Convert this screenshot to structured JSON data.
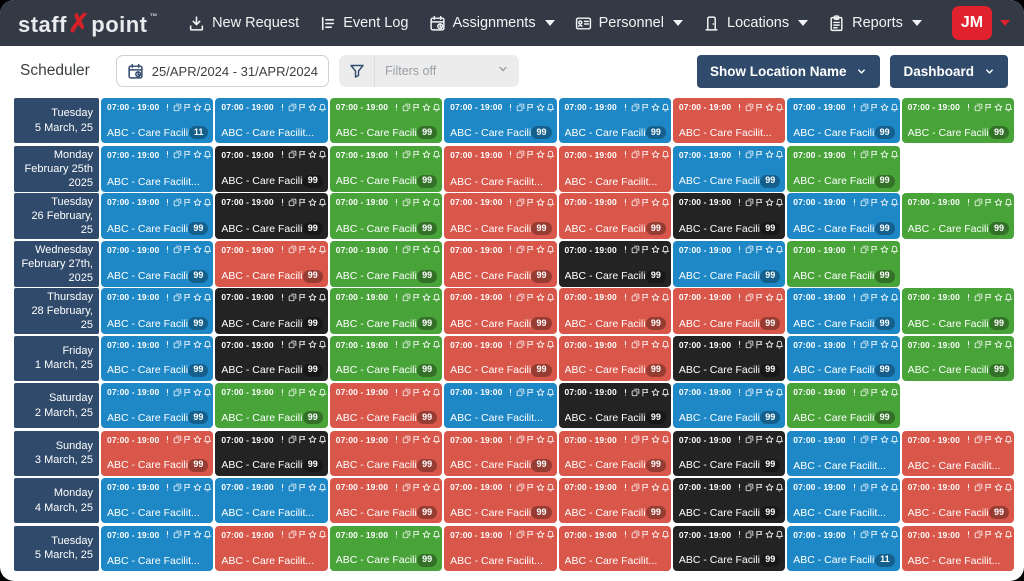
{
  "navbar": {
    "logo": {
      "part1": "staff",
      "x": "✗",
      "part2": "point",
      "tm": "™"
    },
    "items": [
      {
        "label": "New Request",
        "icon": "download-icon",
        "caret": false
      },
      {
        "label": "Event Log",
        "icon": "list-icon",
        "caret": false
      },
      {
        "label": "Assignments",
        "icon": "calendar-icon",
        "caret": true
      },
      {
        "label": "Personnel",
        "icon": "id-card-icon",
        "caret": true
      },
      {
        "label": "Locations",
        "icon": "door-icon",
        "caret": true
      },
      {
        "label": "Reports",
        "icon": "clipboard-icon",
        "caret": true
      }
    ],
    "avatar": "JM"
  },
  "toolbar": {
    "title": "Scheduler",
    "date_range": "25/APR/2024 - 31/APR/2024",
    "filters_label": "Filters off",
    "show_location_button": "Show Location Name",
    "dashboard_button": "Dashboard"
  },
  "card_defaults": {
    "time": "07:00 - 19:00",
    "title": "ABC - Care Facilit...",
    "icons": [
      "alert-icon",
      "copy-icon",
      "flag-icon",
      "star-icon",
      "bell-icon",
      "check-circle-icon"
    ]
  },
  "colors": {
    "blue": "#1e88c7",
    "black": "#232323",
    "green": "#48a339",
    "red": "#d8564a",
    "navy": "#2f4a6b",
    "nav_bg": "#333a45",
    "avatar_red": "#e0212e"
  },
  "scheduler": {
    "rows": [
      {
        "date_lines": [
          "Tuesday",
          "5 March, 25"
        ],
        "cards": [
          {
            "color": "blue",
            "badge": "11"
          },
          {
            "color": "blue",
            "badge": null
          },
          {
            "color": "green",
            "badge": "99"
          },
          {
            "color": "blue",
            "badge": "99"
          },
          {
            "color": "blue",
            "badge": "99"
          },
          {
            "color": "red",
            "badge": null
          },
          {
            "color": "blue",
            "badge": "99"
          },
          {
            "color": "green",
            "badge": "99"
          }
        ]
      },
      {
        "date_lines": [
          "Monday",
          "February 25th",
          "2025"
        ],
        "cards": [
          {
            "color": "blue",
            "badge": null
          },
          {
            "color": "black",
            "badge": "99"
          },
          {
            "color": "green",
            "badge": "99"
          },
          {
            "color": "red",
            "badge": null
          },
          {
            "color": "red",
            "badge": null
          },
          {
            "color": "blue",
            "badge": "99"
          },
          {
            "color": "green",
            "badge": "99"
          }
        ]
      },
      {
        "date_lines": [
          "Tuesday",
          "26 February, 25"
        ],
        "cards": [
          {
            "color": "blue",
            "badge": "99"
          },
          {
            "color": "black",
            "badge": "99"
          },
          {
            "color": "green",
            "badge": "99"
          },
          {
            "color": "red",
            "badge": "99"
          },
          {
            "color": "red",
            "badge": "99"
          },
          {
            "color": "black",
            "badge": "99"
          },
          {
            "color": "blue",
            "badge": "99"
          },
          {
            "color": "green",
            "badge": "99"
          }
        ]
      },
      {
        "date_lines": [
          "Wednesday",
          "February 27th,",
          "2025"
        ],
        "cards": [
          {
            "color": "blue",
            "badge": "99"
          },
          {
            "color": "red",
            "badge": "99"
          },
          {
            "color": "green",
            "badge": "99"
          },
          {
            "color": "red",
            "badge": "99"
          },
          {
            "color": "black",
            "badge": "99"
          },
          {
            "color": "blue",
            "badge": "99"
          },
          {
            "color": "green",
            "badge": "99"
          }
        ]
      },
      {
        "date_lines": [
          "Thursday",
          "28 February, 25"
        ],
        "cards": [
          {
            "color": "blue",
            "badge": "99"
          },
          {
            "color": "black",
            "badge": "99"
          },
          {
            "color": "green",
            "badge": "99"
          },
          {
            "color": "red",
            "badge": "99"
          },
          {
            "color": "red",
            "badge": "99"
          },
          {
            "color": "red",
            "badge": "99"
          },
          {
            "color": "blue",
            "badge": "99"
          },
          {
            "color": "green",
            "badge": "99"
          }
        ]
      },
      {
        "date_lines": [
          "Friday",
          "1 March, 25"
        ],
        "cards": [
          {
            "color": "blue",
            "badge": "99"
          },
          {
            "color": "black",
            "badge": "99"
          },
          {
            "color": "green",
            "badge": "99"
          },
          {
            "color": "red",
            "badge": "99"
          },
          {
            "color": "red",
            "badge": "99"
          },
          {
            "color": "black",
            "badge": "99"
          },
          {
            "color": "blue",
            "badge": "99"
          },
          {
            "color": "green",
            "badge": "99"
          }
        ]
      },
      {
        "date_lines": [
          "Saturday",
          "2 March, 25"
        ],
        "cards": [
          {
            "color": "blue",
            "badge": "99"
          },
          {
            "color": "green",
            "badge": "99"
          },
          {
            "color": "red",
            "badge": "99"
          },
          {
            "color": "blue",
            "badge": null
          },
          {
            "color": "black",
            "badge": "99"
          },
          {
            "color": "blue",
            "badge": "99"
          },
          {
            "color": "green",
            "badge": "99"
          }
        ]
      },
      {
        "date_lines": [
          "Sunday",
          "3 March, 25"
        ],
        "cards": [
          {
            "color": "red",
            "badge": "99"
          },
          {
            "color": "black",
            "badge": "99"
          },
          {
            "color": "red",
            "badge": "99"
          },
          {
            "color": "red",
            "badge": "99"
          },
          {
            "color": "red",
            "badge": "99"
          },
          {
            "color": "black",
            "badge": "99"
          },
          {
            "color": "blue",
            "badge": null
          },
          {
            "color": "red",
            "badge": null
          }
        ]
      },
      {
        "date_lines": [
          "Monday",
          "4 March, 25"
        ],
        "cards": [
          {
            "color": "blue",
            "badge": null
          },
          {
            "color": "blue",
            "badge": null
          },
          {
            "color": "red",
            "badge": "99"
          },
          {
            "color": "red",
            "badge": "99"
          },
          {
            "color": "red",
            "badge": "99"
          },
          {
            "color": "black",
            "badge": "99"
          },
          {
            "color": "blue",
            "badge": null
          },
          {
            "color": "red",
            "badge": "99"
          }
        ]
      },
      {
        "date_lines": [
          "Tuesday",
          "5 March, 25"
        ],
        "cards": [
          {
            "color": "blue",
            "badge": null
          },
          {
            "color": "red",
            "badge": null
          },
          {
            "color": "green",
            "badge": "99"
          },
          {
            "color": "red",
            "badge": null
          },
          {
            "color": "red",
            "badge": null
          },
          {
            "color": "black",
            "badge": "99"
          },
          {
            "color": "blue",
            "badge": "11"
          },
          {
            "color": "red",
            "badge": null
          }
        ]
      }
    ]
  }
}
